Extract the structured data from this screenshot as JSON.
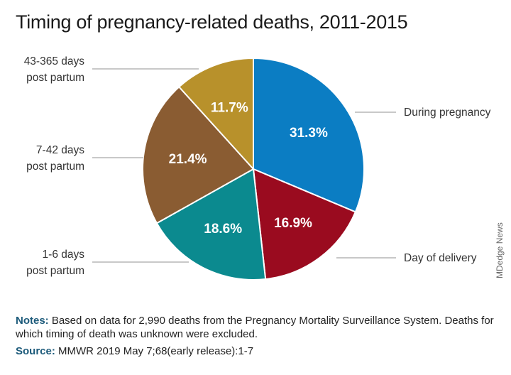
{
  "title": "Timing of pregnancy-related deaths, 2011-2015",
  "chart_data": {
    "type": "pie",
    "slices": [
      {
        "name": "During pregnancy",
        "label_lines": [
          "During pregnancy"
        ],
        "value": 31.3,
        "value_label": "31.3%",
        "color": "#0b7dc3"
      },
      {
        "name": "Day of delivery",
        "label_lines": [
          "Day of delivery"
        ],
        "value": 16.9,
        "value_label": "16.9%",
        "color": "#9a0b1f"
      },
      {
        "name": "1-6 days post partum",
        "label_lines": [
          "1-6 days",
          "post partum"
        ],
        "value": 18.6,
        "value_label": "18.6%",
        "color": "#0b8a8f"
      },
      {
        "name": "7-42 days post partum",
        "label_lines": [
          "7-42 days",
          "post partum"
        ],
        "value": 21.4,
        "value_label": "21.4%",
        "color": "#8a5c32"
      },
      {
        "name": "43-365 days post partum",
        "label_lines": [
          "43-365 days",
          "post partum"
        ],
        "value": 11.7,
        "value_label": "11.7%",
        "color": "#b8912b"
      }
    ]
  },
  "credit": "MDedge News",
  "notes": {
    "head": "Notes:",
    "text": " Based on data for 2,990 deaths from the Pregnancy Mortality Surveillance System. Deaths for which timing of death was unknown were excluded."
  },
  "source": {
    "head": "Source:",
    "text": " MMWR 2019 May 7;68(early release):1-7"
  }
}
